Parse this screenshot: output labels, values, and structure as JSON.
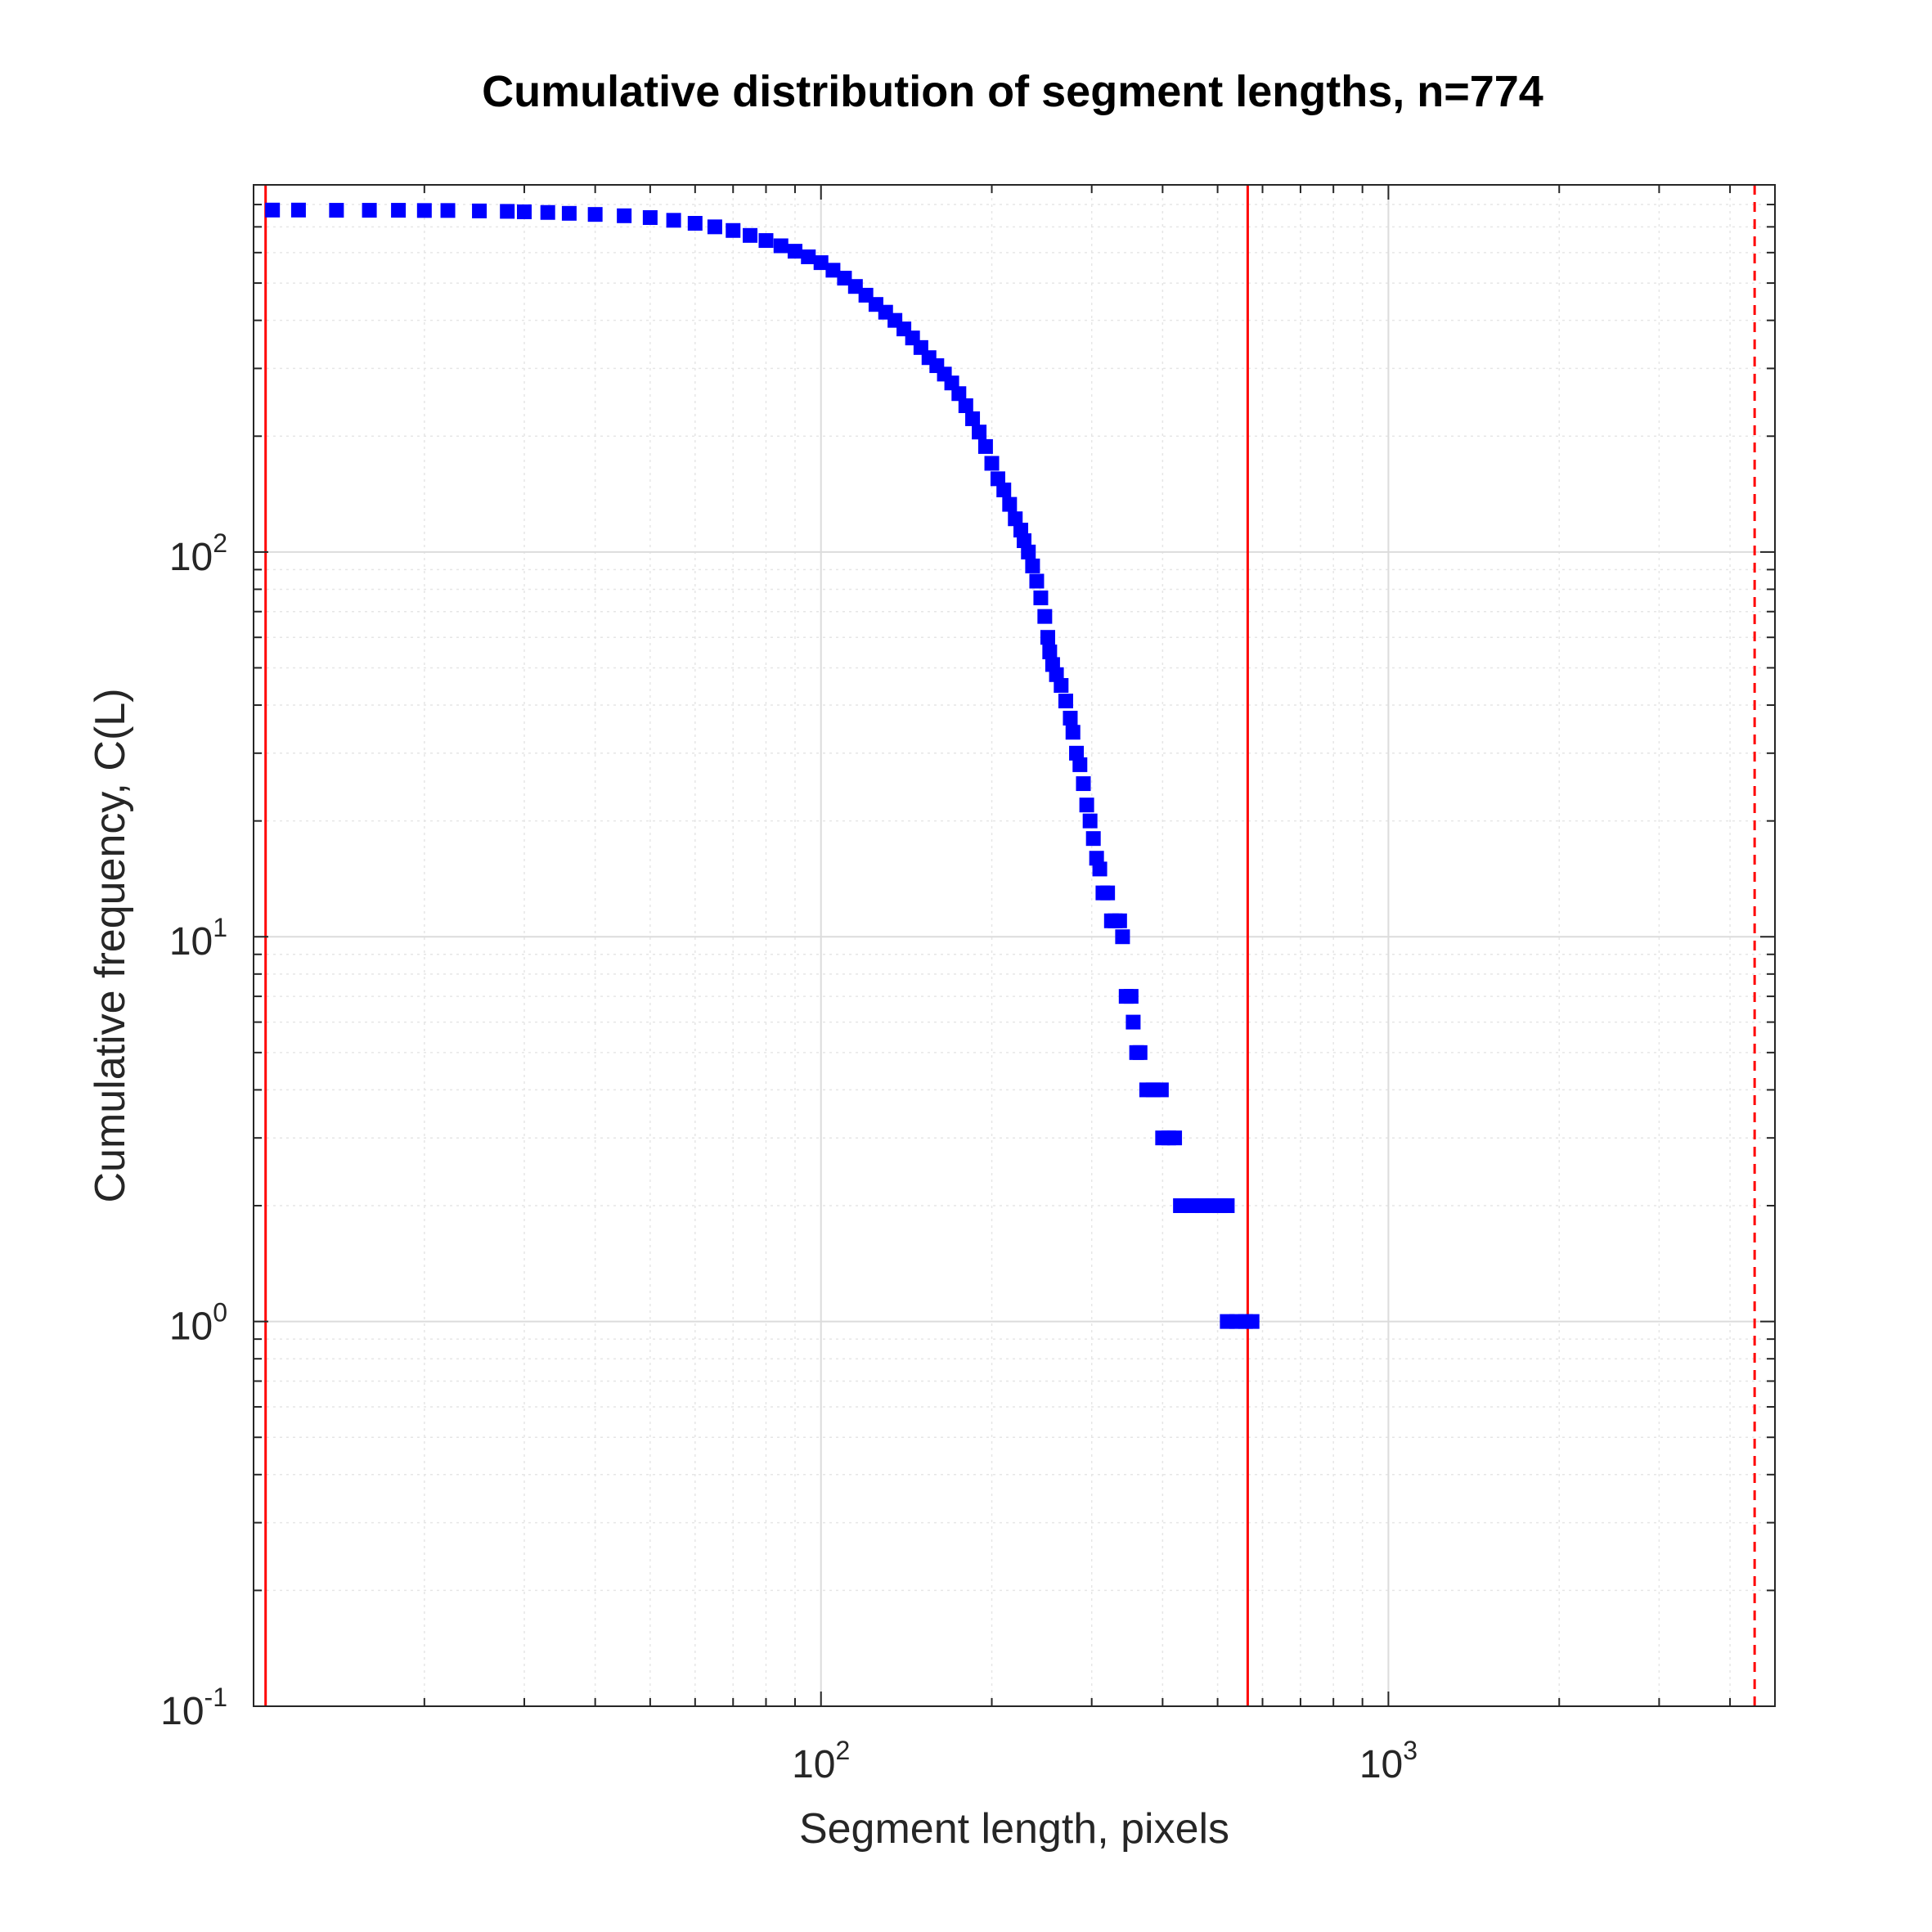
{
  "chart_data": {
    "type": "scatter",
    "title": "Cumulative distribution of segment lengths, n=774",
    "xlabel": "Segment length, pixels",
    "ylabel": "Cumulative frequency, C(L)",
    "xscale": "log",
    "yscale": "log",
    "xlim": [
      10,
      4800
    ],
    "ylim": [
      0.1,
      900
    ],
    "grid": true,
    "x_ticks": [
      {
        "value": 100,
        "base": "10",
        "exp": "2"
      },
      {
        "value": 1000,
        "base": "10",
        "exp": "3"
      }
    ],
    "y_ticks": [
      {
        "value": 0.1,
        "base": "10",
        "exp": "-1"
      },
      {
        "value": 1,
        "base": "10",
        "exp": "0"
      },
      {
        "value": 10,
        "base": "10",
        "exp": "1"
      },
      {
        "value": 100,
        "base": "10",
        "exp": "2"
      }
    ],
    "series": [
      {
        "color": "#0000ff",
        "marker": "square",
        "points": [
          [
            10.8,
            774
          ],
          [
            12,
            774
          ],
          [
            14,
            773
          ],
          [
            16,
            773
          ],
          [
            18,
            773
          ],
          [
            20,
            772
          ],
          [
            22,
            772
          ],
          [
            25,
            770
          ],
          [
            28,
            768
          ],
          [
            30,
            766
          ],
          [
            33,
            763
          ],
          [
            36,
            759
          ],
          [
            40,
            754
          ],
          [
            45,
            748
          ],
          [
            50,
            740
          ],
          [
            55,
            728
          ],
          [
            60,
            715
          ],
          [
            65,
            700
          ],
          [
            70,
            685
          ],
          [
            75,
            665
          ],
          [
            80,
            645
          ],
          [
            85,
            625
          ],
          [
            90,
            605
          ],
          [
            95,
            585
          ],
          [
            100,
            565
          ],
          [
            105,
            540
          ],
          [
            110,
            515
          ],
          [
            115,
            490
          ],
          [
            120,
            465
          ],
          [
            125,
            440
          ],
          [
            130,
            420
          ],
          [
            135,
            400
          ],
          [
            140,
            380
          ],
          [
            145,
            360
          ],
          [
            150,
            340
          ],
          [
            155,
            320
          ],
          [
            160,
            305
          ],
          [
            165,
            290
          ],
          [
            170,
            275
          ],
          [
            175,
            258
          ],
          [
            180,
            240
          ],
          [
            185,
            222
          ],
          [
            190,
            205
          ],
          [
            195,
            188
          ],
          [
            200,
            170
          ],
          [
            205,
            155
          ],
          [
            210,
            145
          ],
          [
            215,
            133
          ],
          [
            220,
            122
          ],
          [
            225,
            114
          ],
          [
            228,
            107
          ],
          [
            232,
            100
          ],
          [
            236,
            92
          ],
          [
            240,
            84
          ],
          [
            244,
            76
          ],
          [
            248,
            68
          ],
          [
            251,
            60
          ],
          [
            253,
            55
          ],
          [
            256,
            51
          ],
          [
            260,
            48
          ],
          [
            265,
            45
          ],
          [
            270,
            41
          ],
          [
            275,
            37
          ],
          [
            278,
            34
          ],
          [
            282,
            30
          ],
          [
            286,
            28
          ],
          [
            290,
            25
          ],
          [
            294,
            22
          ],
          [
            298,
            20
          ],
          [
            302,
            18
          ],
          [
            306,
            16
          ],
          [
            310,
            15
          ],
          [
            314,
            13
          ],
          [
            320,
            13
          ],
          [
            325,
            11
          ],
          [
            330,
            11
          ],
          [
            336,
            11
          ],
          [
            340,
            10
          ],
          [
            345,
            7
          ],
          [
            352,
            7
          ],
          [
            355,
            6
          ],
          [
            360,
            5
          ],
          [
            365,
            5
          ],
          [
            375,
            4
          ],
          [
            385,
            4
          ],
          [
            398,
            4
          ],
          [
            400,
            3
          ],
          [
            410,
            3
          ],
          [
            420,
            3
          ],
          [
            430,
            2
          ],
          [
            450,
            2
          ],
          [
            470,
            2
          ],
          [
            490,
            2
          ],
          [
            505,
            2
          ],
          [
            520,
            2
          ],
          [
            520,
            1
          ],
          [
            540,
            1
          ],
          [
            560,
            1
          ],
          [
            575,
            1
          ]
        ]
      }
    ],
    "reference_lines": [
      {
        "x": 10.5,
        "color": "#ff0000",
        "style": "solid"
      },
      {
        "x": 565,
        "color": "#ff0000",
        "style": "solid"
      },
      {
        "x": 4420,
        "color": "#ff0000",
        "style": "dashed"
      }
    ]
  }
}
